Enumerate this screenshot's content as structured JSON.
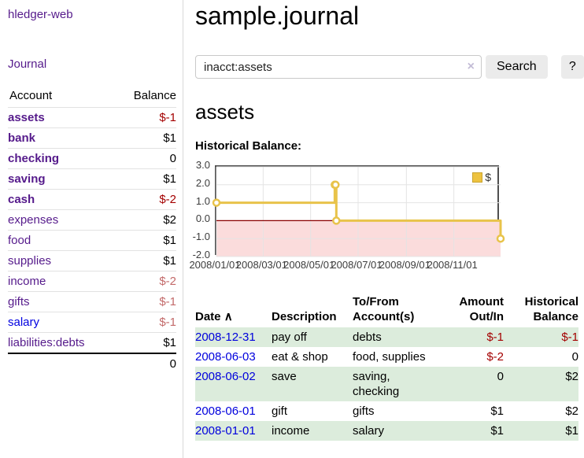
{
  "sidebar": {
    "brand": "hledger-web",
    "journal_link": "Journal",
    "accounts_table": {
      "headers": {
        "account": "Account",
        "balance": "Balance"
      },
      "rows": [
        {
          "name": "assets",
          "level": 1,
          "bold": true,
          "balance": "$-1",
          "balance_tone": "negative"
        },
        {
          "name": "bank",
          "level": 2,
          "bold": true,
          "balance": "$1",
          "balance_tone": "normal"
        },
        {
          "name": "checking",
          "level": 3,
          "bold": true,
          "balance": "0",
          "balance_tone": "normal"
        },
        {
          "name": "saving",
          "level": 3,
          "bold": true,
          "balance": "$1",
          "balance_tone": "normal"
        },
        {
          "name": "cash",
          "level": 2,
          "bold": true,
          "balance": "$-2",
          "balance_tone": "negative"
        },
        {
          "name": "expenses",
          "level": 1,
          "bold": false,
          "balance": "$2",
          "balance_tone": "normal"
        },
        {
          "name": "food",
          "level": 2,
          "bold": false,
          "balance": "$1",
          "balance_tone": "normal"
        },
        {
          "name": "supplies",
          "level": 2,
          "bold": false,
          "balance": "$1",
          "balance_tone": "normal"
        },
        {
          "name": "income",
          "level": 1,
          "bold": false,
          "balance": "$-2",
          "balance_tone": "negative-muted"
        },
        {
          "name": "gifts",
          "level": 2,
          "bold": false,
          "balance": "$-1",
          "balance_tone": "negative-muted"
        },
        {
          "name": "salary",
          "level": 2,
          "bold": false,
          "balance": "$-1",
          "balance_tone": "negative-muted",
          "unvisited": true
        },
        {
          "name": "liabilities:debts",
          "level": 1,
          "bold": false,
          "balance": "$1",
          "balance_tone": "normal"
        }
      ],
      "total": "0"
    }
  },
  "header": {
    "title": "sample.journal"
  },
  "search": {
    "value": "inacct:assets",
    "clear_icon": "×",
    "button_label": "Search",
    "help_label": "?"
  },
  "account_page": {
    "title": "assets",
    "chart_label": "Historical Balance:"
  },
  "chart_data": {
    "type": "line",
    "step": true,
    "series": [
      {
        "name": "$",
        "color": "#e8c34a",
        "points": [
          [
            "2008-01-01",
            1
          ],
          [
            "2008-06-01",
            2
          ],
          [
            "2008-06-02",
            2
          ],
          [
            "2008-06-03",
            0
          ],
          [
            "2008-12-31",
            -1
          ]
        ]
      }
    ],
    "x_range": [
      "2008-01-01",
      "2008-12-31"
    ],
    "x_ticks": [
      {
        "date": "2008-01-01",
        "label": "2008/01/01"
      },
      {
        "date": "2008-03-01",
        "label": "2008/03/01"
      },
      {
        "date": "2008-05-01",
        "label": "2008/05/01"
      },
      {
        "date": "2008-07-01",
        "label": "2008/07/01"
      },
      {
        "date": "2008-09-01",
        "label": "2008/09/01"
      },
      {
        "date": "2008-11-01",
        "label": "2008/11/01"
      }
    ],
    "y_ticks": [
      "3.0",
      "2.0",
      "1.0",
      "0.0",
      "-1.0",
      "-2.0"
    ],
    "ylim": [
      -2,
      3
    ],
    "grid": true,
    "legend_position": "top-right",
    "legend_label": "$",
    "grid_color": "#e4e4e4",
    "negative_region_fill": "#fbdcdc",
    "zero_line_color": "#8b0000"
  },
  "register": {
    "sort_icon": "∧",
    "columns": [
      {
        "l1": "Date"
      },
      {
        "l1": "Description"
      },
      {
        "l1": "To/From",
        "l2": "Account(s)"
      },
      {
        "l1": "Amount",
        "l2": "Out/In"
      },
      {
        "l1": "Historical",
        "l2": "Balance"
      }
    ],
    "rows": [
      {
        "date": "2008-12-31",
        "description": "pay off",
        "accounts": "debts",
        "amount": "$-1",
        "amount_tone": "negative",
        "balance": "$-1",
        "balance_tone": "negative"
      },
      {
        "date": "2008-06-03",
        "description": "eat & shop",
        "accounts": "food, supplies",
        "amount": "$-2",
        "amount_tone": "negative",
        "balance": "0",
        "balance_tone": "normal"
      },
      {
        "date": "2008-06-02",
        "description": "save",
        "accounts": "saving, checking",
        "amount": "0",
        "amount_tone": "normal",
        "balance": "$2",
        "balance_tone": "normal"
      },
      {
        "date": "2008-06-01",
        "description": "gift",
        "accounts": "gifts",
        "amount": "$1",
        "amount_tone": "normal",
        "balance": "$2",
        "balance_tone": "normal"
      },
      {
        "date": "2008-01-01",
        "description": "income",
        "accounts": "salary",
        "amount": "$1",
        "amount_tone": "normal",
        "balance": "$1",
        "balance_tone": "normal"
      }
    ]
  },
  "colors": {
    "link_visited_purple": "#551a8b",
    "link_unvisited_blue": "#0000e0",
    "negative_red": "#a40000",
    "negative_muted_rose": "#c36a6a",
    "row_stripe_green": "#dcecdc",
    "series_gold": "#e8c34a"
  }
}
